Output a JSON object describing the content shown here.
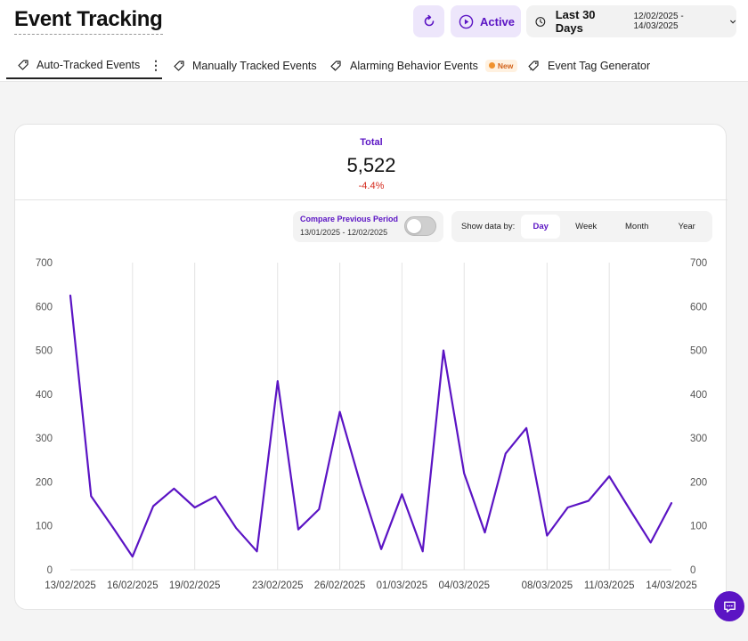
{
  "header": {
    "title": "Event Tracking",
    "refresh_icon": "refresh-icon",
    "status_label": "Active",
    "range_label": "Last 30 Days",
    "range_dates": "12/02/2025 - 14/03/2025"
  },
  "tabs": [
    {
      "label": "Auto-Tracked Events",
      "icon": "tag-icon",
      "active": true
    },
    {
      "label": "Manually Tracked Events",
      "icon": "tag-icon",
      "active": false
    },
    {
      "label": "Alarming Behavior Events",
      "icon": "alarm-tag-icon",
      "active": false,
      "badge": "New"
    },
    {
      "label": "Event Tag Generator",
      "icon": "tag-generator-icon",
      "active": false
    }
  ],
  "summary": {
    "label": "Total",
    "value": "5,522",
    "change": "-4.4%"
  },
  "compare": {
    "label": "Compare Previous Period",
    "dates": "13/01/2025 - 12/02/2025",
    "enabled": false
  },
  "granularity": {
    "label": "Show data by:",
    "options": [
      "Day",
      "Week",
      "Month",
      "Year"
    ],
    "selected": "Day"
  },
  "colors": {
    "accent": "#5b14c4",
    "negative": "#d52b1e",
    "badge": "#f0922e"
  },
  "chart_data": {
    "type": "line",
    "title": "",
    "xlabel": "",
    "ylabel": "",
    "x_tick_labels": [
      "13/02/2025",
      "16/02/2025",
      "19/02/2025",
      "23/02/2025",
      "26/02/2025",
      "01/03/2025",
      "04/03/2025",
      "08/03/2025",
      "11/03/2025",
      "14/03/2025"
    ],
    "y_ticks": [
      0,
      100,
      200,
      300,
      400,
      500,
      600,
      700
    ],
    "ylim": [
      0,
      700
    ],
    "dual_y_axis": true,
    "grid": "vertical",
    "x": [
      "13/02/2025",
      "14/02/2025",
      "15/02/2025",
      "16/02/2025",
      "17/02/2025",
      "18/02/2025",
      "19/02/2025",
      "20/02/2025",
      "21/02/2025",
      "22/02/2025",
      "23/02/2025",
      "24/02/2025",
      "25/02/2025",
      "26/02/2025",
      "27/02/2025",
      "28/02/2025",
      "01/03/2025",
      "02/03/2025",
      "03/03/2025",
      "04/03/2025",
      "05/03/2025",
      "06/03/2025",
      "07/03/2025",
      "08/03/2025",
      "09/03/2025",
      "10/03/2025",
      "11/03/2025",
      "12/03/2025",
      "13/03/2025",
      "14/03/2025"
    ],
    "series": [
      {
        "color": "#5b14c4",
        "values": [
          625,
          168,
          100,
          30,
          145,
          185,
          142,
          167,
          95,
          42,
          430,
          92,
          138,
          360,
          195,
          47,
          172,
          42,
          500,
          220,
          85,
          265,
          323,
          78,
          142,
          157,
          213,
          137,
          62,
          152
        ]
      }
    ]
  }
}
